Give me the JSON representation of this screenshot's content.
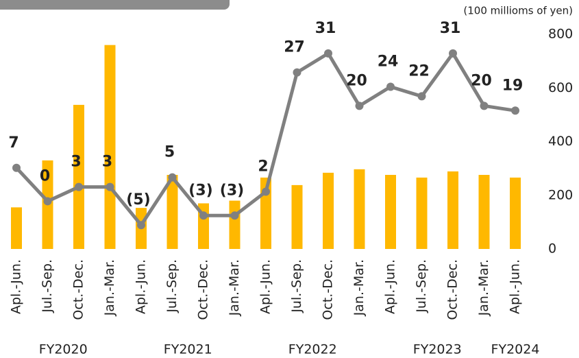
{
  "chart_data": {
    "type": "bar_line",
    "y_unit_label": "(100 millioms of yen)",
    "categories": [
      "Apl.-Jun.",
      "Jul.-Sep.",
      "Oct.-Dec.",
      "Jan.-Mar.",
      "Apl.-Jun.",
      "Jul.-Sep.",
      "Oct.-Dec.",
      "Jan.-Mar.",
      "Apl.-Jun.",
      "Jul.-Sep.",
      "Oct.-Dec.",
      "Jan.-Mar.",
      "Apl.-Jun.",
      "Jul.-Sep.",
      "Oct.-Dec.",
      "Jan.-Mar.",
      "Apl.-Jun."
    ],
    "fiscal_years": [
      "FY2020",
      "FY2021",
      "FY2022",
      "FY2023",
      "FY2024"
    ],
    "ylim": [
      0,
      800
    ],
    "yticks": [
      0,
      200,
      400,
      600,
      800
    ],
    "y2lim": [
      -10,
      35
    ],
    "series": [
      {
        "type": "bar",
        "color": "#ffb800",
        "values": [
          155,
          330,
          537,
          760,
          153,
          276,
          170,
          180,
          266,
          238,
          284,
          297,
          276,
          266,
          289,
          276,
          266
        ]
      },
      {
        "type": "line",
        "axis": "y2",
        "color": "#808080",
        "values": [
          7,
          0,
          3,
          3,
          -5,
          5,
          -3,
          -3,
          2,
          27,
          31,
          20,
          24,
          22,
          31,
          20,
          19
        ],
        "value_labels": [
          "7",
          "0",
          "3",
          "3",
          "(5)",
          "5",
          "(3)",
          "(3)",
          "2",
          "27",
          "31",
          "20",
          "24",
          "22",
          "31",
          "20",
          "19"
        ]
      }
    ]
  }
}
